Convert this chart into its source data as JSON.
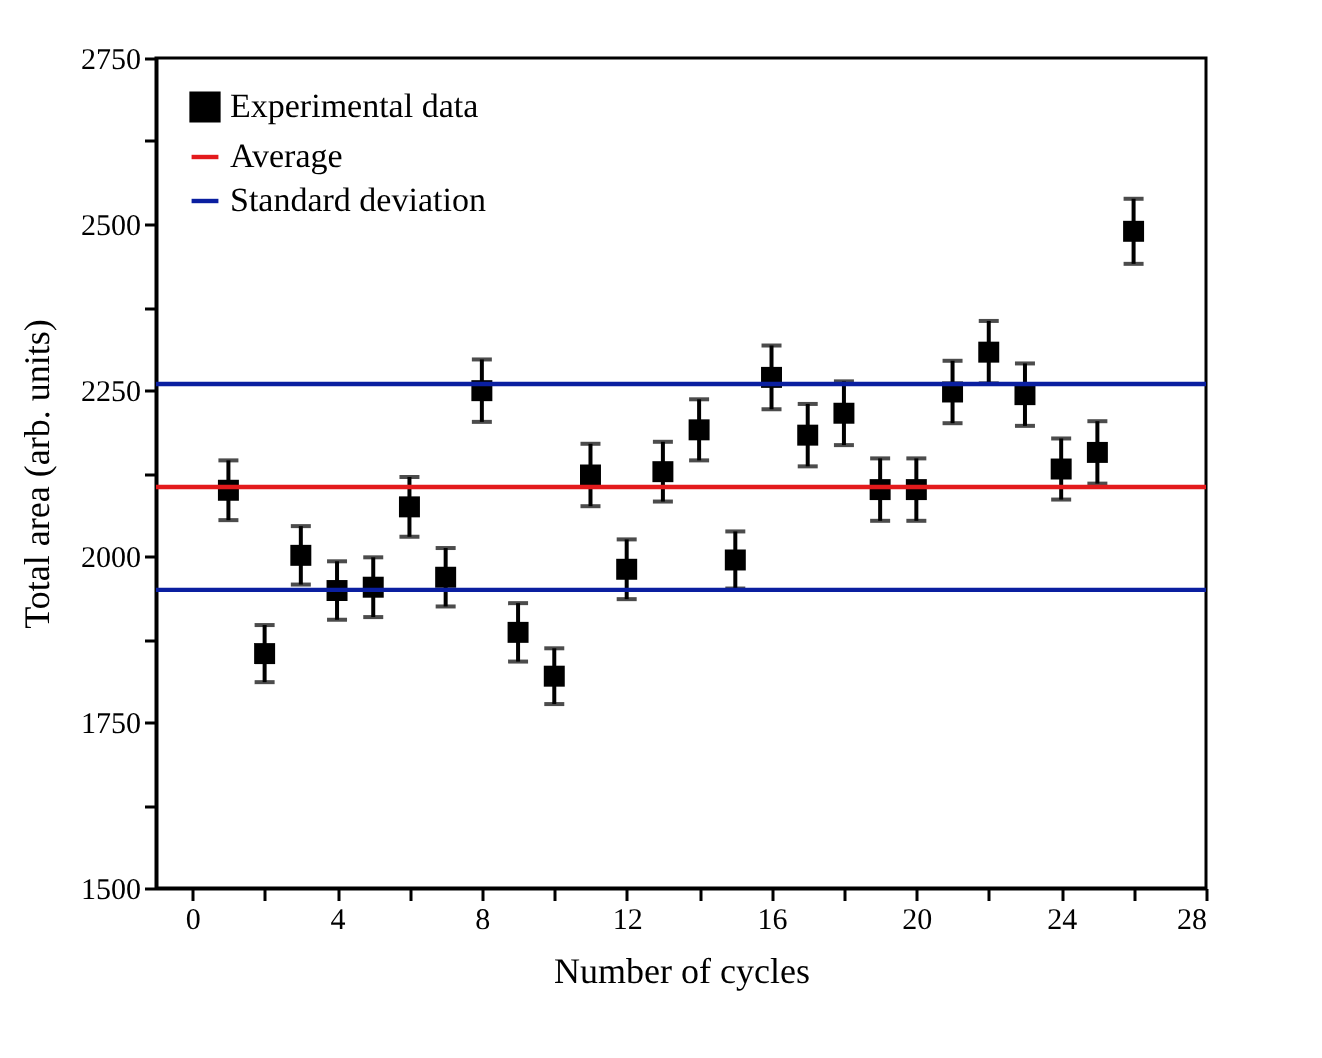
{
  "chart_data": {
    "type": "scatter",
    "xlabel": "Number of cycles",
    "ylabel": "Total area (arb. units)",
    "x": [
      1,
      2,
      3,
      4,
      5,
      6,
      7,
      8,
      9,
      10,
      11,
      12,
      13,
      14,
      15,
      16,
      17,
      18,
      19,
      20,
      21,
      22,
      23,
      24,
      25,
      26
    ],
    "series": [
      {
        "name": "Experimental data",
        "color": "#000000",
        "values": [
          2099,
          1853,
          2001,
          1948,
          1953,
          2074,
          1968,
          2249,
          1885,
          1819,
          2122,
          1980,
          2127,
          2190,
          1994,
          2269,
          2182,
          2215,
          2100,
          2100,
          2247,
          2307,
          2243,
          2131,
          2156,
          2489
        ],
        "errors": [
          45,
          43,
          44,
          44,
          45,
          45,
          44,
          47,
          44,
          42,
          47,
          45,
          45,
          46,
          43,
          48,
          47,
          48,
          47,
          47,
          47,
          47,
          47,
          46,
          47,
          49
        ]
      }
    ],
    "ref_lines": [
      {
        "axis": "y",
        "value": 2104,
        "label": "Average",
        "color": "#e31a1c"
      },
      {
        "axis": "y",
        "value": 2259,
        "label": "Standard deviation",
        "color": "#0a1fa0"
      },
      {
        "axis": "y",
        "value": 1949,
        "color": "#0a1fa0"
      }
    ],
    "marker": "square",
    "legend": "top left",
    "grid": false,
    "xlim": [
      -1,
      28
    ],
    "xticks": [
      0,
      {
        "value": 2,
        "label": null
      },
      4,
      {
        "value": 6,
        "label": null
      },
      8,
      {
        "value": 10,
        "label": null
      },
      12,
      {
        "value": 14,
        "label": null
      },
      16,
      {
        "value": 18,
        "label": null
      },
      20,
      {
        "value": 22,
        "label": null
      },
      24,
      {
        "value": 26,
        "label": null
      },
      28
    ],
    "ylim": [
      1500,
      2750
    ],
    "yticks": [
      1500,
      {
        "value": 1625,
        "label": null
      },
      1750,
      {
        "value": 1875,
        "label": null
      },
      2000,
      {
        "value": 2125,
        "label": null
      },
      2250,
      {
        "value": 2375,
        "label": null
      },
      2500,
      {
        "value": 2625,
        "label": null
      },
      2750
    ]
  }
}
